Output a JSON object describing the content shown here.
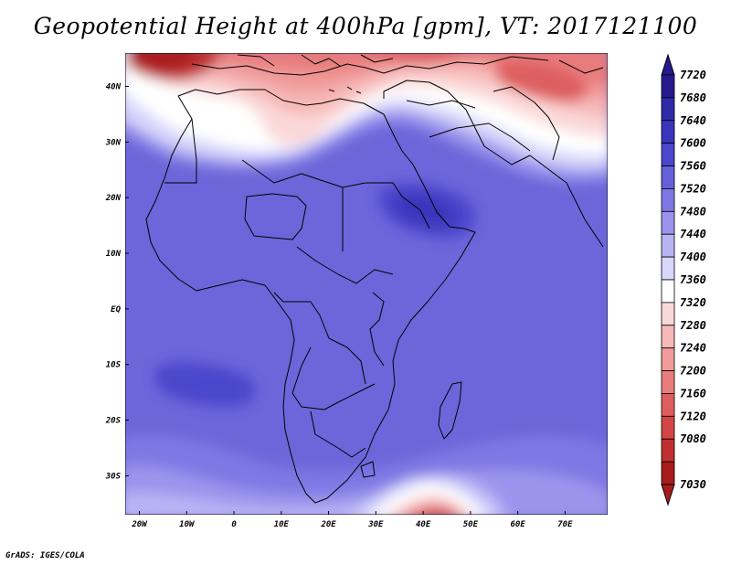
{
  "title": "Geopotential Height at 400hPa [gpm], VT: 2017121100",
  "footer": "GrADS: IGES/COLA",
  "map": {
    "lon_range": [
      -23,
      79
    ],
    "lat_range": [
      -37,
      46
    ],
    "lat_ticks": [
      {
        "lat": 40,
        "label": "40N"
      },
      {
        "lat": 30,
        "label": "30N"
      },
      {
        "lat": 20,
        "label": "20N"
      },
      {
        "lat": 10,
        "label": "10N"
      },
      {
        "lat": 0,
        "label": "EQ"
      },
      {
        "lat": -10,
        "label": "10S"
      },
      {
        "lat": -20,
        "label": "20S"
      },
      {
        "lat": -30,
        "label": "30S"
      }
    ],
    "lon_ticks": [
      {
        "lon": -20,
        "label": "20W"
      },
      {
        "lon": -10,
        "label": "10W"
      },
      {
        "lon": 0,
        "label": "0"
      },
      {
        "lon": 10,
        "label": "10E"
      },
      {
        "lon": 20,
        "label": "20E"
      },
      {
        "lon": 30,
        "label": "30E"
      },
      {
        "lon": 40,
        "label": "40E"
      },
      {
        "lon": 50,
        "label": "50E"
      },
      {
        "lon": 60,
        "label": "60E"
      },
      {
        "lon": 70,
        "label": "70E"
      }
    ]
  },
  "colorbar": {
    "levels": [
      "7720",
      "7680",
      "7640",
      "7600",
      "7560",
      "7520",
      "7480",
      "7440",
      "7400",
      "7360",
      "7320",
      "7280",
      "7240",
      "7200",
      "7160",
      "7120",
      "7080",
      "7030"
    ],
    "colors": [
      "#241a8e",
      "#2e2aa8",
      "#3a34bc",
      "#4c46cc",
      "#6660d8",
      "#7e78e4",
      "#9a94ec",
      "#b8b4f4",
      "#d8d6fa",
      "#ffffff",
      "#fbd8d8",
      "#f6b8b8",
      "#f09a9a",
      "#e87c7c",
      "#de5e5e",
      "#d24646",
      "#c03030",
      "#a81c1c"
    ]
  }
}
